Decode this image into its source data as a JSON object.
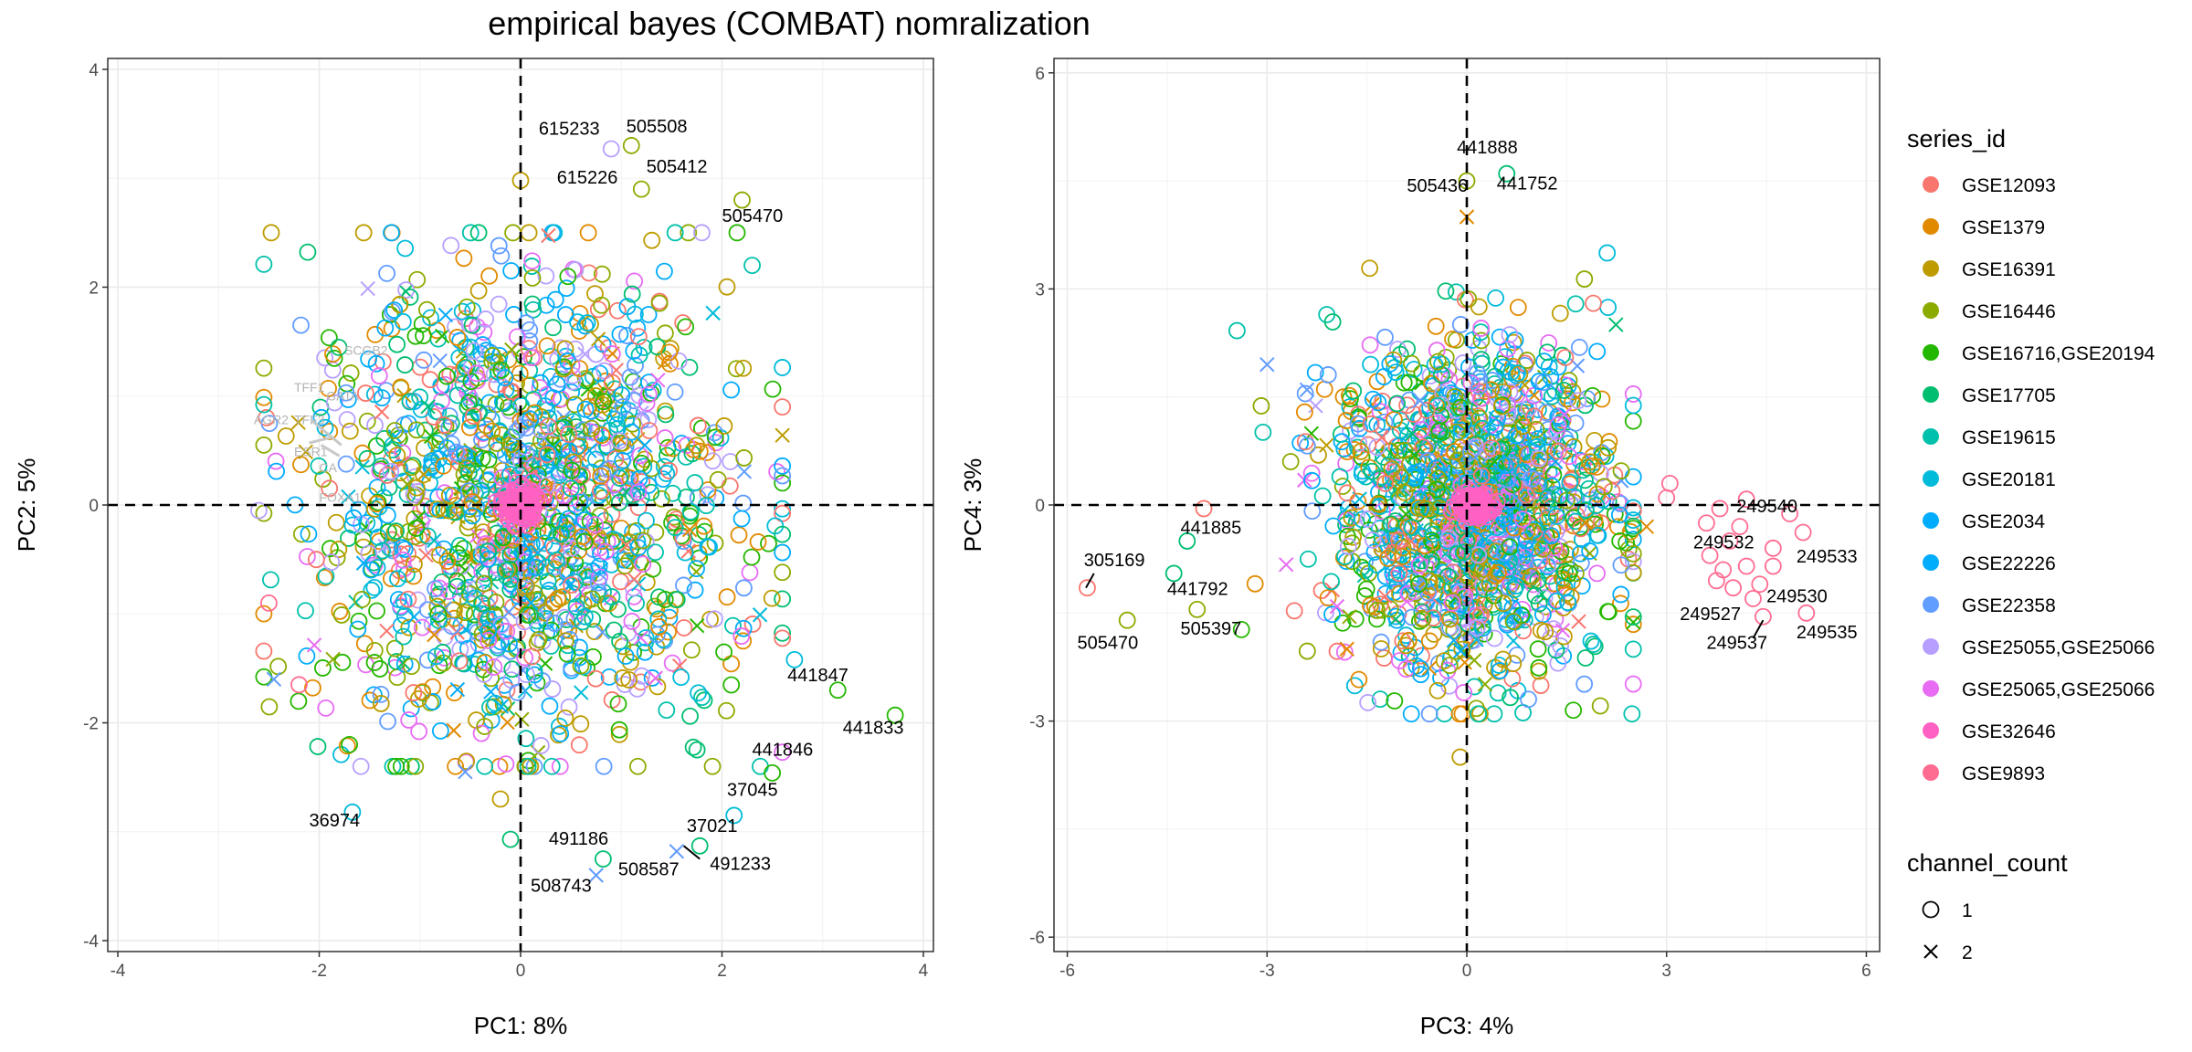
{
  "title": "empirical bayes (COMBAT) nomralization",
  "colors": {
    "GSE12093": "#F8766D",
    "GSE1379": "#E18A00",
    "GSE16391": "#BE9C00",
    "GSE16446": "#8CAB00",
    "GSE16716,GSE20194": "#24B700",
    "GSE17705": "#00BE70",
    "GSE19615": "#00C1AB",
    "GSE20181": "#00BBDA",
    "GSE2034": "#00ACFC",
    "GSE22226": "#00ACFC",
    "GSE22358": "#619CFF",
    "GSE25055,GSE25066": "#B79FFF",
    "GSE25065,GSE25066": "#E76BF3",
    "GSE32646": "#FF61C3",
    "GSE9893": "#FF6C91"
  },
  "chart_data": [
    {
      "type": "scatter",
      "xlabel": "PC1: 8%",
      "ylabel": "PC2: 5%",
      "xlim": [
        -4.1,
        4.1
      ],
      "ylim": [
        -4.1,
        4.1
      ],
      "xticks": [
        -4,
        -2,
        0,
        2,
        4
      ],
      "yticks": [
        -4,
        -2,
        0,
        2,
        4
      ],
      "xtick_labels": [
        "-4",
        "-2",
        "0",
        "2",
        "4"
      ],
      "ytick_labels": [
        "-4",
        "-2",
        "0",
        "2",
        "4"
      ],
      "cloud": {
        "cx": 0,
        "cy": 0,
        "sx": 1.05,
        "sy": 1.05
      },
      "outliers": [
        {
          "x": 3.72,
          "y": -1.93,
          "s": "GSE16716,GSE20194"
        },
        {
          "x": 3.15,
          "y": -1.7,
          "s": "GSE16716,GSE20194"
        },
        {
          "x": 2.72,
          "y": -1.42,
          "s": "GSE20181"
        },
        {
          "x": 2.5,
          "y": -2.46,
          "s": "GSE16716,GSE20194"
        },
        {
          "x": 2.12,
          "y": -2.85,
          "s": "GSE20181"
        },
        {
          "x": 2.6,
          "y": 0.9,
          "s": "GSE12093"
        },
        {
          "x": 2.15,
          "y": 2.5,
          "s": "GSE16716,GSE20194"
        },
        {
          "x": 2.3,
          "y": 2.2,
          "s": "GSE19615"
        },
        {
          "x": 2.2,
          "y": 2.8,
          "s": "GSE16446"
        },
        {
          "x": 1.78,
          "y": -3.13,
          "s": "GSE17705"
        },
        {
          "x": 1.55,
          "y": -3.18,
          "s": "GSE22358",
          "c": 2
        },
        {
          "x": 0.82,
          "y": -3.25,
          "s": "GSE17705"
        },
        {
          "x": 0.75,
          "y": -3.4,
          "s": "GSE22358",
          "c": 2
        },
        {
          "x": -0.1,
          "y": -3.07,
          "s": "GSE17705"
        },
        {
          "x": -1.67,
          "y": -2.82,
          "s": "GSE20181"
        },
        {
          "x": 0.0,
          "y": 2.98,
          "s": "GSE16391"
        },
        {
          "x": 1.1,
          "y": 3.3,
          "s": "GSE16446"
        },
        {
          "x": 0.9,
          "y": 3.27,
          "s": "GSE25055,GSE25066"
        },
        {
          "x": 1.2,
          "y": 2.9,
          "s": "GSE16446"
        },
        {
          "x": 1.8,
          "y": 2.5,
          "s": "GSE25055,GSE25066"
        },
        {
          "x": -2.6,
          "y": -0.05,
          "s": "GSE25055,GSE25066"
        },
        {
          "x": -2.5,
          "y": -0.9,
          "s": "GSE9893"
        },
        {
          "x": -2.45,
          "y": -1.6,
          "s": "GSE22358",
          "c": 2
        },
        {
          "x": -2.2,
          "y": -1.65,
          "s": "GSE9893"
        },
        {
          "x": -1.7,
          "y": -2.2,
          "s": "GSE16716,GSE20194"
        },
        {
          "x": -0.55,
          "y": -2.45,
          "s": "GSE22358",
          "c": 2
        },
        {
          "x": -0.2,
          "y": -2.7,
          "s": "GSE16391"
        }
      ],
      "labels": [
        {
          "x": 0.18,
          "y": 3.4,
          "t": "615233"
        },
        {
          "x": 1.05,
          "y": 3.42,
          "t": "505508"
        },
        {
          "x": 0.36,
          "y": 2.95,
          "t": "615226"
        },
        {
          "x": 1.25,
          "y": 3.05,
          "t": "505412"
        },
        {
          "x": 2.0,
          "y": 2.6,
          "t": "505470"
        },
        {
          "x": 2.65,
          "y": -1.62,
          "t": "441847"
        },
        {
          "x": 3.2,
          "y": -2.1,
          "t": "441833"
        },
        {
          "x": 2.3,
          "y": -2.3,
          "t": "441846"
        },
        {
          "x": 2.05,
          "y": -2.67,
          "t": "37045"
        },
        {
          "x": 1.65,
          "y": -3.0,
          "t": "37021"
        },
        {
          "x": 0.28,
          "y": -3.12,
          "t": "491186"
        },
        {
          "x": 1.88,
          "y": -3.35,
          "t": "491233"
        },
        {
          "x": 0.97,
          "y": -3.4,
          "t": "508587"
        },
        {
          "x": 0.1,
          "y": -3.55,
          "t": "508743"
        },
        {
          "x": -2.1,
          "y": -2.95,
          "t": "36974"
        }
      ],
      "genes": [
        {
          "x": -1.75,
          "y": 1.38,
          "t": "SCGB2"
        },
        {
          "x": -2.25,
          "y": 1.04,
          "t": "TFF1"
        },
        {
          "x": -2.65,
          "y": 0.74,
          "t": "AGR2"
        },
        {
          "x": -2.25,
          "y": 0.74,
          "t": "TFF3"
        },
        {
          "x": -2.25,
          "y": 0.45,
          "t": "ESR1"
        },
        {
          "x": -1.93,
          "y": 0.96,
          "t": "GATA"
        },
        {
          "x": -2.0,
          "y": 0.03,
          "t": "FOXA1"
        },
        {
          "x": -2.0,
          "y": 0.3,
          "t": "CA"
        }
      ],
      "leaders": [
        {
          "x1": 1.62,
          "y1": -3.13,
          "x2": 1.78,
          "y2": -3.25
        }
      ]
    },
    {
      "type": "scatter",
      "xlabel": "PC3: 4%",
      "ylabel": "PC4: 3%",
      "xlim": [
        -6.2,
        6.2
      ],
      "ylim": [
        -6.2,
        6.2
      ],
      "xticks": [
        -6,
        -3,
        0,
        3,
        6
      ],
      "yticks": [
        -6,
        -3,
        0,
        3,
        6
      ],
      "xtick_labels": [
        "-6",
        "-3",
        "0",
        "3",
        "6"
      ],
      "ytick_labels": [
        "-6",
        "-3",
        "0",
        "3",
        "6"
      ],
      "cloud": {
        "cx": 0.1,
        "cy": 0.0,
        "sx": 1.05,
        "sy": 1.15
      },
      "outliers": [
        {
          "x": -5.7,
          "y": -1.15,
          "s": "GSE12093"
        },
        {
          "x": -5.1,
          "y": -1.6,
          "s": "GSE16446"
        },
        {
          "x": -4.4,
          "y": -0.95,
          "s": "GSE17705"
        },
        {
          "x": -4.2,
          "y": -0.5,
          "s": "GSE17705"
        },
        {
          "x": -4.05,
          "y": -1.45,
          "s": "GSE16446"
        },
        {
          "x": -3.95,
          "y": -0.05,
          "s": "GSE12093"
        },
        {
          "x": -3.0,
          "y": 1.95,
          "s": "GSE22358",
          "c": 2
        },
        {
          "x": -2.4,
          "y": 1.6,
          "s": "GSE22358",
          "c": 2
        },
        {
          "x": 0.0,
          "y": 4.5,
          "s": "GSE16446"
        },
        {
          "x": 0.6,
          "y": 4.6,
          "s": "GSE17705"
        },
        {
          "x": 0.0,
          "y": 4.0,
          "s": "GSE1379",
          "c": 2
        },
        {
          "x": -0.1,
          "y": -3.5,
          "s": "GSE16391"
        },
        {
          "x": 1.9,
          "y": 2.8,
          "s": "GSE12093"
        },
        {
          "x": 1.6,
          "y": -2.85,
          "s": "GSE16716,GSE20194"
        },
        {
          "x": -1.8,
          "y": -2.0,
          "s": "GSE1379",
          "c": 2
        },
        {
          "x": 2.3,
          "y": -0.5,
          "s": "GSE16716,GSE20194"
        },
        {
          "x": 2.7,
          "y": -0.3,
          "s": "GSE1379",
          "c": 2
        },
        {
          "x": 3.8,
          "y": -0.05,
          "s": "GSE9893"
        },
        {
          "x": 4.2,
          "y": 0.08,
          "s": "GSE9893"
        },
        {
          "x": 4.1,
          "y": -0.3,
          "s": "GSE9893"
        },
        {
          "x": 4.6,
          "y": -0.6,
          "s": "GSE9893"
        },
        {
          "x": 5.05,
          "y": -0.38,
          "s": "GSE9893"
        },
        {
          "x": 4.85,
          "y": -0.12,
          "s": "GSE9893"
        },
        {
          "x": 3.65,
          "y": -0.7,
          "s": "GSE9893"
        },
        {
          "x": 3.85,
          "y": -0.9,
          "s": "GSE9893"
        },
        {
          "x": 4.0,
          "y": -1.15,
          "s": "GSE9893"
        },
        {
          "x": 4.4,
          "y": -1.1,
          "s": "GSE9893"
        },
        {
          "x": 4.3,
          "y": -1.3,
          "s": "GSE9893"
        },
        {
          "x": 4.45,
          "y": -1.55,
          "s": "GSE9893"
        },
        {
          "x": 5.1,
          "y": -1.5,
          "s": "GSE9893"
        },
        {
          "x": 4.2,
          "y": -0.85,
          "s": "GSE9893"
        },
        {
          "x": 3.95,
          "y": -0.5,
          "s": "GSE9893"
        },
        {
          "x": 3.6,
          "y": -0.25,
          "s": "GSE9893"
        },
        {
          "x": 3.75,
          "y": -1.05,
          "s": "GSE9893"
        },
        {
          "x": 4.6,
          "y": -0.85,
          "s": "GSE9893"
        },
        {
          "x": 3.05,
          "y": 0.3,
          "s": "GSE9893"
        },
        {
          "x": 3.0,
          "y": 0.1,
          "s": "GSE9893"
        }
      ],
      "labels": [
        {
          "x": -5.75,
          "y": -0.85,
          "t": "305169"
        },
        {
          "x": -4.3,
          "y": -0.4,
          "t": "441885"
        },
        {
          "x": -4.5,
          "y": -1.25,
          "t": "441792"
        },
        {
          "x": -5.85,
          "y": -2.0,
          "t": "505470"
        },
        {
          "x": -4.3,
          "y": -1.8,
          "t": "505397"
        },
        {
          "x": -0.15,
          "y": 4.88,
          "t": "441888"
        },
        {
          "x": 0.45,
          "y": 4.38,
          "t": "441752"
        },
        {
          "x": -0.9,
          "y": 4.35,
          "t": "505436"
        },
        {
          "x": 4.05,
          "y": -0.1,
          "t": "249540"
        },
        {
          "x": 3.4,
          "y": -0.6,
          "t": "249532"
        },
        {
          "x": 4.95,
          "y": -0.8,
          "t": "249533"
        },
        {
          "x": 4.5,
          "y": -1.35,
          "t": "249530"
        },
        {
          "x": 3.2,
          "y": -1.6,
          "t": "249527"
        },
        {
          "x": 3.6,
          "y": -2.0,
          "t": "249537"
        },
        {
          "x": 4.95,
          "y": -1.85,
          "t": "249535"
        }
      ],
      "genes": [],
      "leaders": [
        {
          "x1": -5.72,
          "y1": -1.15,
          "x2": -5.6,
          "y2": -0.95
        },
        {
          "x1": 4.3,
          "y1": -1.85,
          "x2": 4.45,
          "y2": -1.6
        }
      ]
    }
  ],
  "legend": {
    "series_title": "series_id",
    "series": [
      "GSE12093",
      "GSE1379",
      "GSE16391",
      "GSE16446",
      "GSE16716,GSE20194",
      "GSE17705",
      "GSE19615",
      "GSE20181",
      "GSE2034",
      "GSE22226",
      "GSE22358",
      "GSE25055,GSE25066",
      "GSE25065,GSE25066",
      "GSE32646",
      "GSE9893"
    ],
    "channel_title": "channel_count",
    "channels": [
      {
        "label": "1",
        "shape": "circle"
      },
      {
        "label": "2",
        "shape": "cross"
      }
    ]
  }
}
